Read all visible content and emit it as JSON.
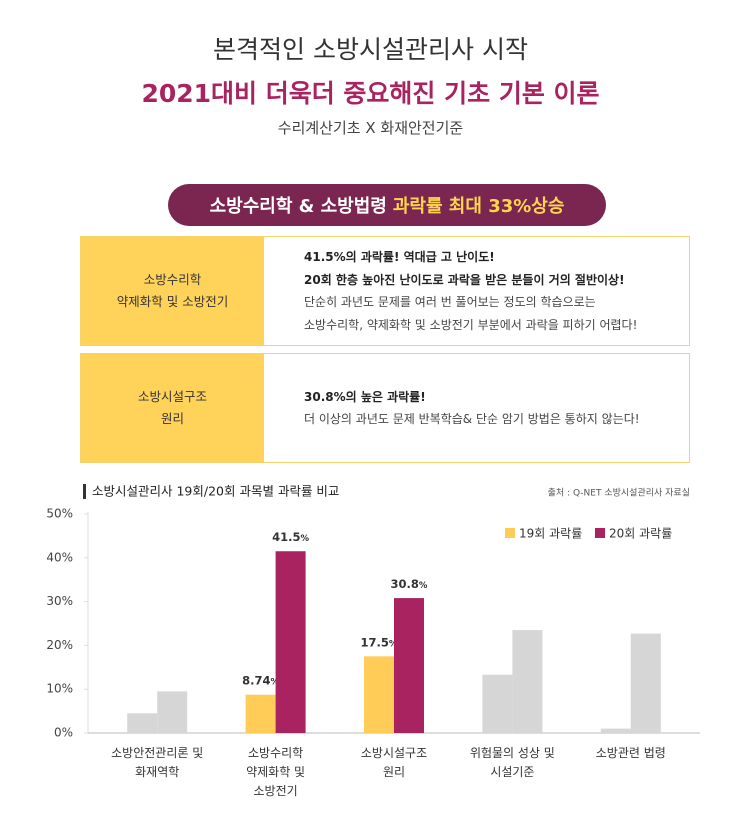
{
  "header": {
    "title": "본격적인 소방시설관리사 시작",
    "headline": "2021대비 더욱더 중요해진 기초 기본 이론",
    "subtitle": "수리계산기초 X 화재안전기준"
  },
  "banner": {
    "text": "소방수리학 & 소방법령",
    "highlight": "과락률 최대 33%상승"
  },
  "table": {
    "rows": [
      {
        "label": [
          "소방수리학",
          "약제화학 및 소방전기"
        ],
        "highlights": [
          "41.5%의 과락률! 역대급 고 난이도!",
          "20회 한층 높아진 난이도로 과락을 받은 분들이 거의 절반이상!"
        ],
        "lines": [
          "단순히 과년도 문제를 여러 번 풀어보는 정도의 학습으로는",
          "소방수리학, 약제화학 및 소방전기 부분에서 과락을 피하기 어렵다!"
        ]
      },
      {
        "label": [
          "소방시설구조",
          "원리"
        ],
        "highlights": [
          "30.8%의 높은 과락률!"
        ],
        "lines": [
          "더 이상의 과년도 문제 반복학습& 단순 암기 방법은 통하지 않는다!"
        ]
      }
    ]
  },
  "chart_data": {
    "type": "bar",
    "title": "소방시설관리사 19회/20회 과목별 과락률 비교",
    "source": "출처 : Q-NET 소방시설관리사 자료실",
    "categories": [
      "소방안전관리론 및\n화재역학",
      "소방수리학\n약제화학 및\n소방전기",
      "소방시설구조\n원리",
      "위험물의 성상 및\n시설기준",
      "소방관련 법령"
    ],
    "series": [
      {
        "name": "19회 과락률",
        "color": "#ffcd57",
        "colors": [
          "#d6d6d6",
          "#ffcd57",
          "#ffcd57",
          "#d6d6d6",
          "#d6d6d6"
        ],
        "values": [
          4.5,
          8.74,
          17.5,
          13.3,
          1
        ],
        "value_labels": [
          null,
          "8.74%",
          "17.5%",
          null,
          null
        ]
      },
      {
        "name": "20회 과락률",
        "color": "#a8235f",
        "colors": [
          "#d6d6d6",
          "#a8235f",
          "#a8235f",
          "#d6d6d6",
          "#d6d6d6"
        ],
        "values": [
          9.5,
          41.5,
          30.8,
          23.5,
          22.7
        ],
        "value_labels": [
          null,
          "41.5%",
          "30.8%",
          null,
          null
        ]
      }
    ],
    "ylim": [
      0,
      50
    ],
    "yticks": [
      {
        "value": 0,
        "label": "0%"
      },
      {
        "value": 10,
        "label": "10%"
      },
      {
        "value": 20,
        "label": "20%"
      },
      {
        "value": 30,
        "label": "30%"
      },
      {
        "value": 40,
        "label": "40%"
      },
      {
        "value": 50,
        "label": "50%"
      }
    ],
    "grid": false,
    "legend": "top-right"
  }
}
